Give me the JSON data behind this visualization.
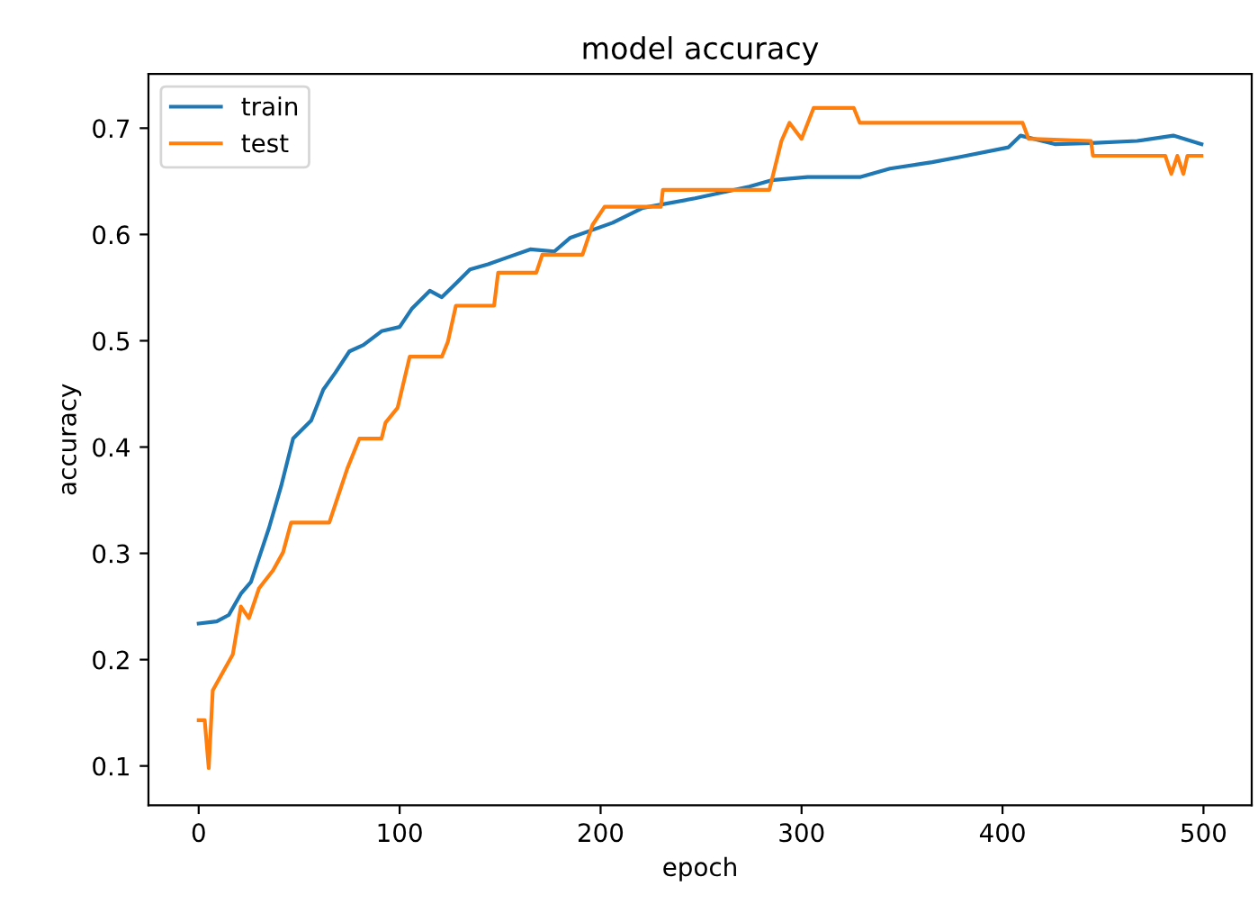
{
  "chart_data": {
    "type": "line",
    "title": "model accuracy",
    "xlabel": "epoch",
    "ylabel": "accuracy",
    "xlim": [
      -25,
      524
    ],
    "ylim": [
      0.063,
      0.751
    ],
    "xticks": [
      0,
      100,
      200,
      300,
      400,
      500
    ],
    "yticks": [
      0.1,
      0.2,
      0.3,
      0.4,
      0.5,
      0.6,
      0.7
    ],
    "grid": false,
    "legend": "top left",
    "line_style": "solid",
    "marker": "none",
    "series": [
      {
        "name": "train",
        "color": "#1f77b4",
        "x": [
          0,
          9,
          15,
          21,
          26,
          32,
          35,
          41,
          47,
          56,
          62,
          68,
          75,
          82,
          91,
          100,
          106,
          115,
          121,
          127,
          135,
          144,
          153,
          165,
          177,
          185,
          194,
          206,
          221,
          247,
          274,
          285,
          303,
          329,
          344,
          365,
          379,
          403,
          409,
          426,
          444,
          467,
          485,
          499
        ],
        "values": [
          0.234,
          0.236,
          0.242,
          0.262,
          0.273,
          0.307,
          0.324,
          0.363,
          0.408,
          0.425,
          0.454,
          0.47,
          0.49,
          0.496,
          0.509,
          0.513,
          0.53,
          0.547,
          0.541,
          0.552,
          0.567,
          0.572,
          0.578,
          0.586,
          0.584,
          0.597,
          0.603,
          0.611,
          0.625,
          0.634,
          0.645,
          0.651,
          0.654,
          0.654,
          0.662,
          0.668,
          0.673,
          0.682,
          0.693,
          0.685,
          0.686,
          0.688,
          0.693,
          0.685
        ]
      },
      {
        "name": "test",
        "color": "#ff7f0e",
        "x": [
          0,
          3,
          5,
          7,
          12,
          17,
          21,
          25,
          30,
          37,
          42,
          46,
          65,
          68,
          74,
          80,
          91,
          93,
          99,
          105,
          121,
          124,
          128,
          147,
          149,
          168,
          171,
          191,
          196,
          202,
          230,
          231,
          284,
          290,
          294,
          300,
          306,
          326,
          329,
          410,
          413,
          444,
          445,
          481,
          484,
          487,
          490,
          492,
          499
        ],
        "values": [
          0.143,
          0.143,
          0.098,
          0.171,
          0.188,
          0.205,
          0.25,
          0.239,
          0.267,
          0.284,
          0.301,
          0.329,
          0.329,
          0.346,
          0.38,
          0.408,
          0.408,
          0.423,
          0.437,
          0.485,
          0.485,
          0.499,
          0.533,
          0.533,
          0.564,
          0.564,
          0.581,
          0.581,
          0.609,
          0.626,
          0.626,
          0.642,
          0.642,
          0.688,
          0.705,
          0.69,
          0.719,
          0.719,
          0.705,
          0.705,
          0.69,
          0.688,
          0.674,
          0.674,
          0.657,
          0.674,
          0.657,
          0.674,
          0.674
        ]
      }
    ]
  }
}
